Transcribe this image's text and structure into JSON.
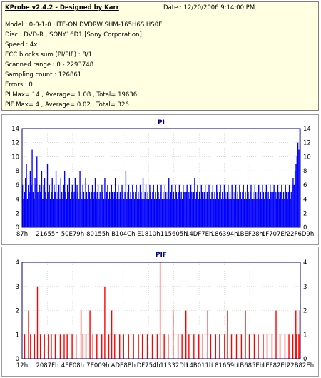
{
  "header": {
    "app_title": "KProbe v2.4.2 - Designed by Karr",
    "date": "Date : 12/20/2006 9:14:00 PM"
  },
  "info_lines": [
    "Model : 0-0-1-0 LITE-ON DVDRW SHM-165H6S HS0E",
    "Disc : DVD-R , SONY16D1 [Sony Corporation]",
    "Speed : 4x",
    "ECC blocks sum (PI/PIF) : 8/1",
    "Scanned range : 0 - 2293748",
    "Sampling count : 126861",
    "Errors : 0",
    "PI Max= 14 , Average= 1.08 , Total= 19636",
    "PIF Max= 4 , Average= 0.02 , Total= 326"
  ],
  "colors": {
    "pi_bar": "#0000ff",
    "pif_bar": "#ff0000",
    "border_line": "#000080",
    "plot_bg": "#ffffff",
    "grid": "#c8c8c8"
  },
  "chart_data": [
    {
      "type": "bar",
      "title": "PI",
      "ylim": [
        0,
        14
      ],
      "yticks": [
        0,
        2,
        4,
        6,
        8,
        10,
        12,
        14
      ],
      "xtick_labels": [
        "87h",
        "21655h",
        "50E79h",
        "80155h",
        "B104Ch",
        "E1810h",
        "115605h",
        "14DF7Eh",
        "186394h",
        "1BEF28h",
        "1F707Eh",
        "22F6D9h"
      ],
      "grid": true,
      "series": [
        {
          "values": [
            6,
            4,
            5,
            7,
            9,
            4,
            6,
            5,
            8,
            6,
            11,
            5,
            4,
            7,
            6,
            10,
            5,
            4,
            6,
            5,
            8,
            4,
            6,
            7,
            5,
            4,
            9,
            5,
            6,
            4,
            5,
            7,
            4,
            6,
            5,
            8,
            4,
            5,
            6,
            4,
            7,
            5,
            4,
            6,
            8,
            5,
            4,
            6,
            5,
            7,
            4,
            5,
            6,
            4,
            5,
            7,
            4,
            6,
            5,
            4,
            8,
            5,
            4,
            6,
            5,
            4,
            7,
            5,
            4,
            6,
            5,
            4,
            5,
            6,
            4,
            5,
            7,
            4,
            5,
            6,
            4,
            5,
            4,
            6,
            5,
            4,
            7,
            4,
            5,
            6,
            4,
            5,
            4,
            6,
            5,
            4,
            5,
            7,
            4,
            5,
            6,
            4,
            5,
            4,
            6,
            5,
            4,
            5,
            8,
            4,
            5,
            6,
            4,
            5,
            4,
            6,
            5,
            4,
            5,
            6,
            4,
            5,
            4,
            6,
            5,
            4,
            7,
            4,
            5,
            6,
            4,
            5,
            4,
            6,
            5,
            4,
            5,
            6,
            4,
            5,
            4,
            6,
            5,
            4,
            5,
            6,
            4,
            5,
            4,
            6,
            5,
            4,
            5,
            7,
            4,
            5,
            6,
            4,
            5,
            4,
            6,
            5,
            4,
            5,
            6,
            4,
            5,
            4,
            6,
            5,
            4,
            5,
            6,
            4,
            5,
            4,
            6,
            5,
            4,
            5,
            7,
            4,
            5,
            6,
            4,
            5,
            4,
            6,
            5,
            4,
            5,
            6,
            4,
            5,
            4,
            6,
            5,
            4,
            5,
            6,
            4,
            5,
            4,
            6,
            5,
            4,
            5,
            6,
            4,
            5,
            4,
            6,
            5,
            4,
            5,
            6,
            4,
            5,
            4,
            6,
            5,
            4,
            5,
            6,
            4,
            5,
            4,
            6,
            5,
            4,
            5,
            6,
            4,
            5,
            4,
            6,
            5,
            4,
            5,
            6,
            4,
            5,
            4,
            6,
            5,
            4,
            5,
            6,
            4,
            5,
            4,
            6,
            5,
            4,
            5,
            6,
            4,
            5,
            4,
            6,
            5,
            4,
            5,
            6,
            4,
            5,
            4,
            6,
            5,
            4,
            5,
            6,
            4,
            5,
            4,
            6,
            5,
            4,
            5,
            6,
            4,
            5,
            6,
            7,
            6,
            8,
            9,
            10,
            12,
            11,
            14
          ]
        }
      ]
    },
    {
      "type": "bar",
      "title": "PIF",
      "ylim": [
        0,
        4
      ],
      "yticks": [
        0,
        1,
        2,
        3,
        4
      ],
      "xtick_labels": [
        "12h",
        "2087Fh",
        "4EE08h",
        "7E009h",
        "ADE8Bh",
        "DF754h",
        "11332Dh",
        "14B011h",
        "181659h",
        "1B685Eh",
        "1EF82Eh",
        "22B82Eh"
      ],
      "grid": true,
      "series": [
        {
          "values": [
            0,
            0,
            1,
            0,
            0,
            0,
            2,
            0,
            1,
            0,
            0,
            0,
            1,
            0,
            0,
            3,
            0,
            0,
            1,
            0,
            0,
            0,
            1,
            0,
            0,
            0,
            1,
            0,
            0,
            1,
            0,
            0,
            0,
            1,
            0,
            0,
            0,
            0,
            1,
            0,
            0,
            0,
            1,
            0,
            0,
            1,
            0,
            0,
            0,
            0,
            1,
            0,
            0,
            0,
            1,
            0,
            0,
            0,
            0,
            2,
            0,
            1,
            0,
            0,
            1,
            0,
            0,
            0,
            2,
            0,
            0,
            1,
            0,
            0,
            0,
            1,
            0,
            0,
            0,
            0,
            1,
            0,
            0,
            3,
            0,
            0,
            0,
            1,
            0,
            0,
            2,
            0,
            0,
            1,
            0,
            0,
            0,
            0,
            1,
            0,
            0,
            0,
            1,
            0,
            0,
            0,
            0,
            1,
            0,
            0,
            0,
            0,
            1,
            0,
            0,
            0,
            0,
            1,
            0,
            0,
            0,
            1,
            0,
            0,
            0,
            0,
            1,
            0,
            0,
            0,
            0,
            1,
            0,
            0,
            0,
            0,
            1,
            0,
            0,
            4,
            0,
            0,
            0,
            1,
            0,
            0,
            0,
            1,
            0,
            0,
            0,
            0,
            2,
            0,
            0,
            0,
            0,
            1,
            0,
            0,
            0,
            1,
            0,
            0,
            0,
            2,
            0,
            0,
            1,
            0,
            0,
            0,
            0,
            1,
            0,
            0,
            0,
            0,
            1,
            0,
            0,
            0,
            1,
            0,
            0,
            0,
            0,
            2,
            0,
            0,
            1,
            0,
            0,
            0,
            0,
            1,
            0,
            0,
            0,
            1,
            0,
            0,
            0,
            0,
            1,
            0,
            0,
            2,
            0,
            0,
            0,
            1,
            0,
            0,
            0,
            0,
            1,
            0,
            0,
            0,
            0,
            1,
            0,
            0,
            0,
            2,
            0,
            0,
            0,
            1,
            0,
            0,
            0,
            0,
            1,
            0,
            0,
            0,
            1,
            0,
            0,
            0,
            0,
            1,
            0,
            0,
            0,
            1,
            0,
            0,
            0,
            0,
            1,
            0,
            0,
            0,
            2,
            0,
            0,
            0,
            1,
            0,
            0,
            0,
            0,
            1,
            0,
            0,
            0,
            1,
            0,
            0,
            0,
            1,
            0,
            0,
            2,
            1,
            0,
            1,
            2
          ]
        }
      ]
    }
  ]
}
